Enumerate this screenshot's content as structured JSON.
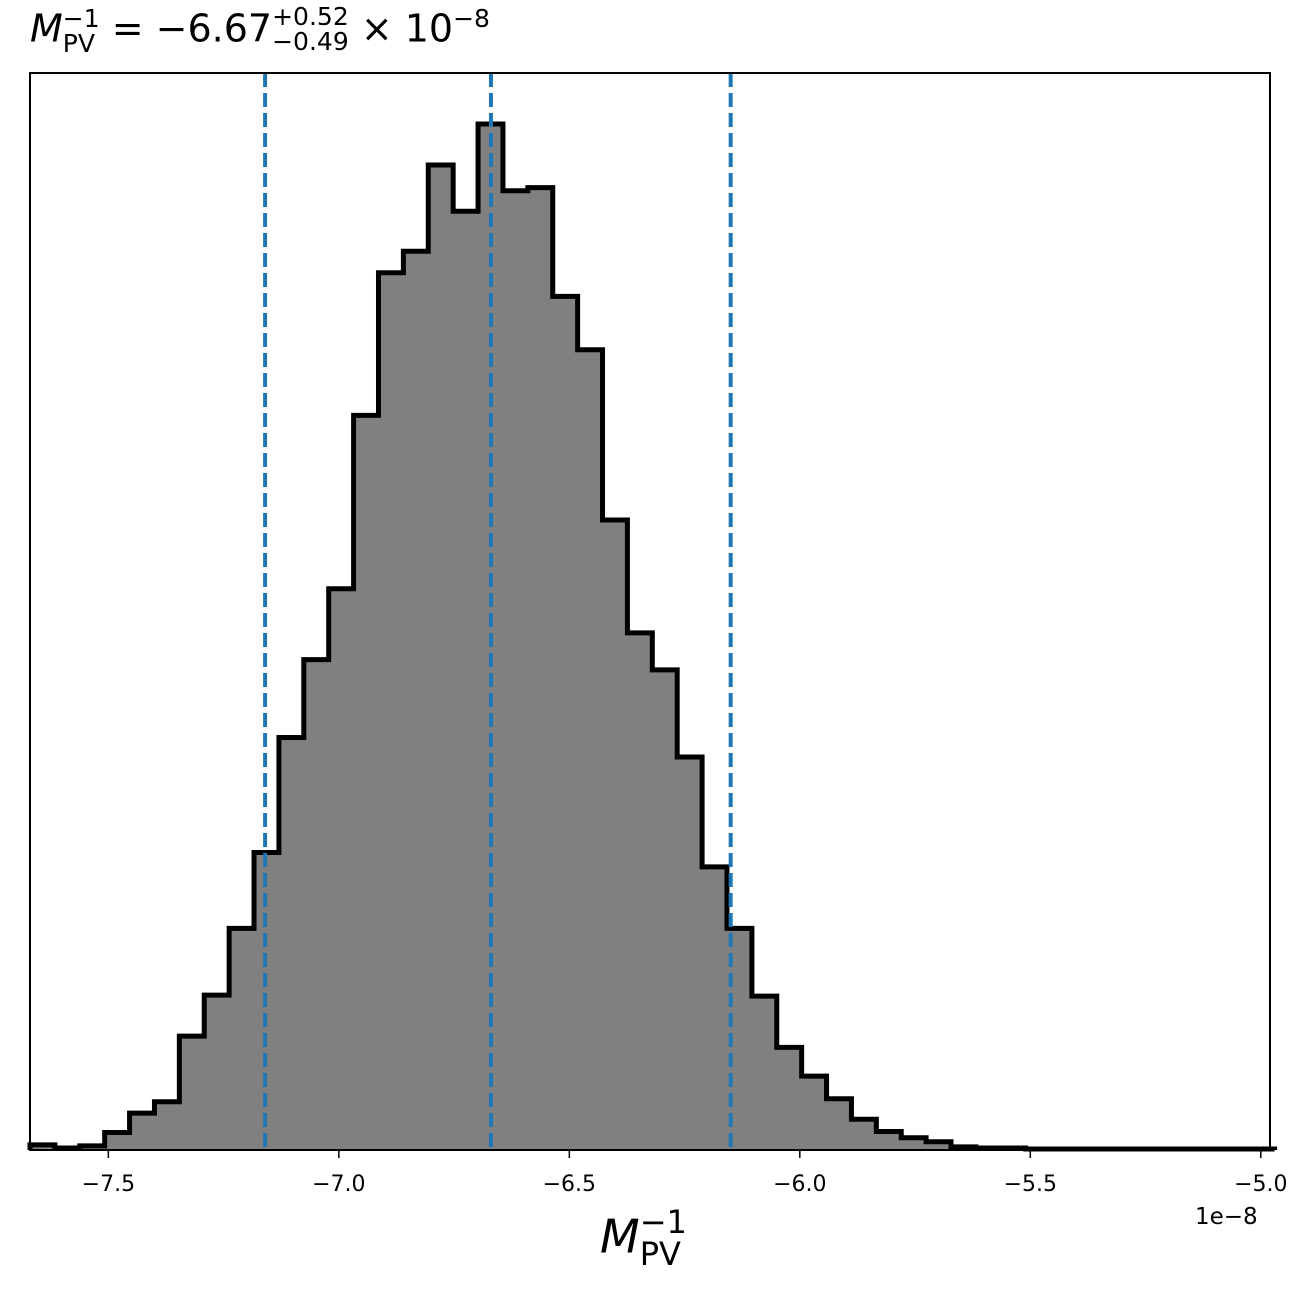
{
  "title": {
    "symbol": "M",
    "subscript": "PV",
    "superscript": "−1",
    "equals": " = −6.67",
    "upper": "+0.52",
    "lower": "−0.49",
    "times": " × 10",
    "exponent": "−8"
  },
  "chart_data": {
    "type": "histogram",
    "x_range": [
      -7.67,
      -4.98
    ],
    "y_range": [
      0,
      1
    ],
    "x_ticks": [
      {
        "value": -7.5,
        "label": "−7.5"
      },
      {
        "value": -7.0,
        "label": "−7.0"
      },
      {
        "value": -6.5,
        "label": "−6.5"
      },
      {
        "value": -6.0,
        "label": "−6.0"
      },
      {
        "value": -5.5,
        "label": "−5.5"
      },
      {
        "value": -5.0,
        "label": "−5.0"
      }
    ],
    "x_offset_label": "1e−8",
    "xlabel": {
      "symbol": "M",
      "subscript": "PV",
      "superscript": "−1"
    },
    "bins_start": -7.67,
    "bin_width": 0.054,
    "counts": [
      0.005,
      0.002,
      0.004,
      0.017,
      0.036,
      0.047,
      0.111,
      0.151,
      0.216,
      0.29,
      0.402,
      0.478,
      0.547,
      0.716,
      0.855,
      0.876,
      0.96,
      0.915,
      1.0,
      0.935,
      0.938,
      0.832,
      0.78,
      0.614,
      0.504,
      0.468,
      0.383,
      0.276,
      0.216,
      0.15,
      0.1,
      0.072,
      0.05,
      0.03,
      0.018,
      0.012,
      0.008,
      0.003,
      0.002,
      0.002,
      0.001,
      0.001,
      0.001,
      0.001,
      0.001,
      0.001,
      0.001,
      0.001,
      0.001,
      0.001
    ],
    "quantile_lines": [
      -7.16,
      -6.67,
      -6.15
    ],
    "colors": {
      "fill": "#808080",
      "edge": "#000000",
      "quantile": "#1f77b4"
    }
  }
}
